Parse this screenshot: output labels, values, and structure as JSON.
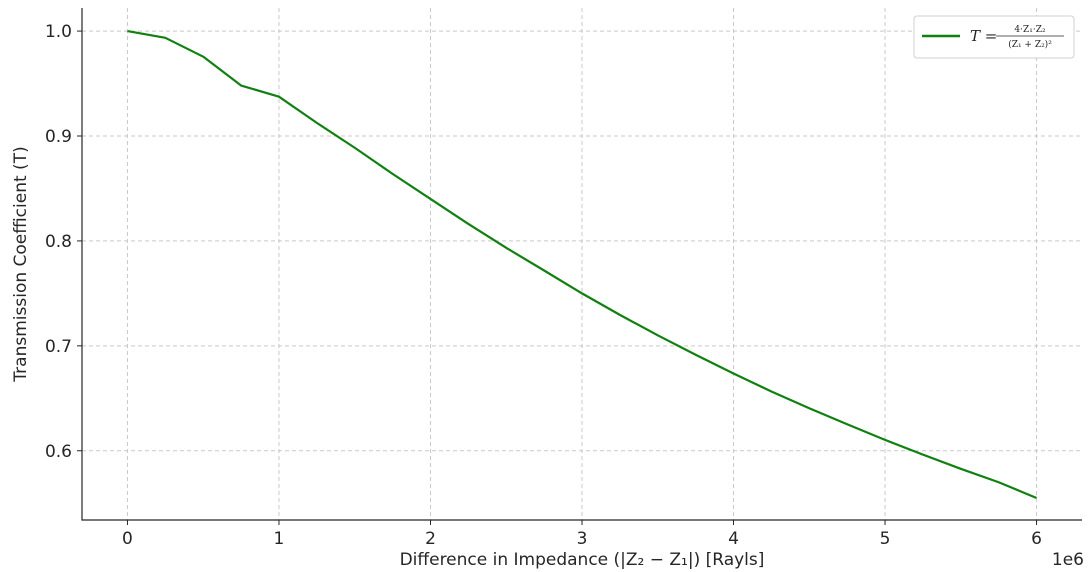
{
  "chart_data": {
    "type": "line",
    "title": "",
    "xlabel": "Difference in Impedance (|Z₂ − Z₁|) [Rayls]",
    "ylabel": "Transmission Coefficient (T)",
    "x_offset_label": "1e6",
    "xlim": [
      -0.3,
      6.3
    ],
    "ylim": [
      0.534,
      1.022
    ],
    "x_ticks": [
      0,
      1,
      2,
      3,
      4,
      5,
      6
    ],
    "x_tick_labels": [
      "0",
      "1",
      "2",
      "3",
      "4",
      "5",
      "6"
    ],
    "y_ticks": [
      0.6,
      0.7,
      0.8,
      0.9,
      1.0
    ],
    "y_tick_labels": [
      "0.6",
      "0.7",
      "0.8",
      "0.9",
      "1.0"
    ],
    "grid": true,
    "legend_position": "top-right",
    "color": "#118011",
    "series": [
      {
        "name": "T = 4·Z₁·Z₂ / (Z₁ + Z₂)²",
        "legend_parts": {
          "lhs": "T =",
          "numerator": "4·Z₁·Z₂",
          "denominator": "(Z₁ + Z₂)²"
        },
        "x": [
          0,
          0.25,
          0.5,
          0.75,
          1.0,
          1.25,
          1.5,
          1.75,
          2.0,
          2.25,
          2.5,
          2.75,
          3.0,
          3.25,
          3.5,
          3.75,
          4.0,
          4.25,
          4.5,
          4.75,
          5.0,
          5.25,
          5.5,
          5.75,
          6.0
        ],
        "y": [
          1.0,
          0.9936,
          0.9756,
          0.9481,
          0.9375,
          0.9125,
          0.8888,
          0.8639,
          0.84,
          0.8162,
          0.7934,
          0.7718,
          0.75,
          0.7295,
          0.71,
          0.6915,
          0.6736,
          0.6565,
          0.6405,
          0.6253,
          0.6104,
          0.5963,
          0.5828,
          0.57,
          0.555
        ]
      }
    ]
  }
}
